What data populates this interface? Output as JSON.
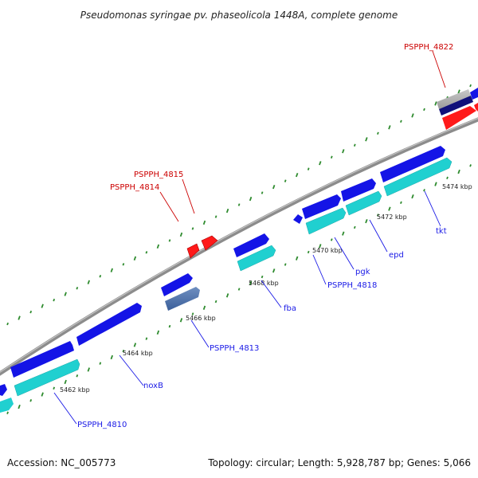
{
  "title": "Pseudomonas syringae pv. phaseolicola 1448A, complete genome",
  "footer": {
    "accession": "Accession: NC_005773",
    "summary": "Topology: circular; Length: 5,928,787 bp; Genes: 5,066"
  },
  "colors": {
    "backbone": "#8c8c8c",
    "cds": "#1414e6",
    "gene": "#20d0d0",
    "rna_gene": "#ff1a1a",
    "label_blue": "#1a1ae6",
    "label_red": "#cc0000",
    "tick": "#2e8b2e"
  },
  "ticks": [
    "5462 kbp",
    "5464 kbp",
    "5466 kbp",
    "5468 kbp",
    "5470 kbp",
    "5472 kbp",
    "5474 kbp"
  ],
  "labels": {
    "PSPPH_4822": "PSPPH_4822",
    "PSPPH_4815": "PSPPH_4815",
    "PSPPH_4814": "PSPPH_4814",
    "PSPPH_4818": "PSPPH_4818",
    "PSPPH_4813": "PSPPH_4813",
    "PSPPH_4810": "PSPPH_4810",
    "noxB": "noxB",
    "fba": "fba",
    "pgk": "pgk",
    "epd": "epd",
    "tkt": "tkt"
  }
}
